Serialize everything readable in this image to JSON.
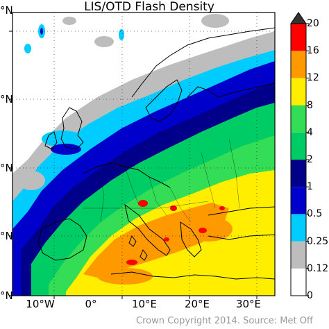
{
  "map": {
    "title": "LIS/OTD Flash Density",
    "lat_labels": [
      "°N",
      "°N",
      "°N",
      "°N",
      "°N"
    ],
    "lon_labels": [
      "10°W",
      "0°",
      "10°E",
      "20°E",
      "30°E"
    ],
    "projection": "lat-lon",
    "coastlines": true,
    "country_borders": true,
    "gridlines": "dotted"
  },
  "colorbar": {
    "levels": [
      "0",
      "0.125",
      "0.25",
      "0.5",
      "1",
      "2",
      "4",
      "8",
      "12",
      "16",
      "20"
    ],
    "colors": [
      "#ffffff",
      "#bdbdbd",
      "#00ccff",
      "#0000cc",
      "#00008b",
      "#00cc66",
      "#33dd55",
      "#ffee00",
      "#ff9900",
      "#ff0000",
      "#333333"
    ],
    "extend": "max"
  },
  "credit": "Crown Copyright 2014. Source: Met Off"
}
